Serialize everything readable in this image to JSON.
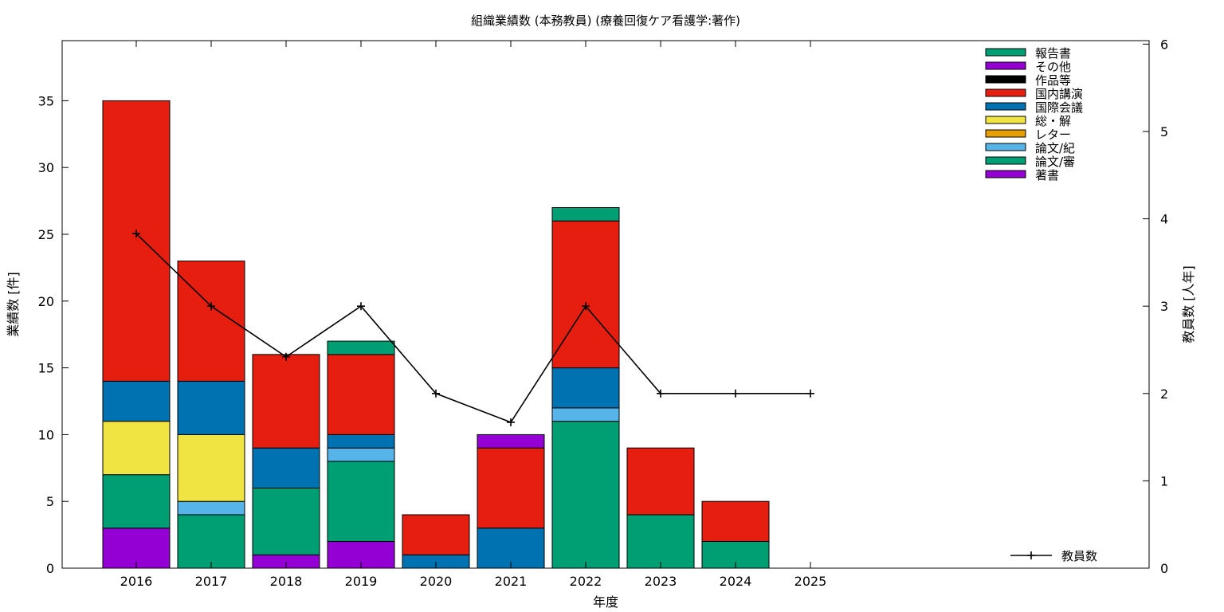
{
  "chart_data": {
    "type": "bar",
    "stacked": true,
    "title": "組織業績数 (本務教員) (療養回復ケア看護学:著作)",
    "xlabel": "年度",
    "ylabel": "業績数 [件]",
    "y2label": "教員数 [人年]",
    "categories": [
      "2016",
      "2017",
      "2018",
      "2019",
      "2020",
      "2021",
      "2022",
      "2023",
      "2024",
      "2025"
    ],
    "ylim": [
      0,
      39.5
    ],
    "yticks": [
      "0",
      "5",
      "10",
      "15",
      "20",
      "25",
      "30",
      "35"
    ],
    "y2lim": [
      0,
      6.04
    ],
    "y2ticks": [
      "0",
      "1",
      "2",
      "3",
      "4",
      "5",
      "6"
    ],
    "grid": false,
    "legend_position": "top-right",
    "series": [
      {
        "name": "著書",
        "color": "#9400d3",
        "values": [
          3,
          0,
          1,
          2,
          0,
          0,
          0,
          0,
          0,
          0
        ]
      },
      {
        "name": "論文/審",
        "color": "#009e73",
        "values": [
          4,
          4,
          5,
          6,
          0,
          0,
          11,
          4,
          2,
          0
        ]
      },
      {
        "name": "論文/紀",
        "color": "#56b4e9",
        "values": [
          0,
          1,
          0,
          1,
          0,
          0,
          1,
          0,
          0,
          0
        ]
      },
      {
        "name": "レター",
        "color": "#e69f00",
        "values": [
          0,
          0,
          0,
          0,
          0,
          0,
          0,
          0,
          0,
          0
        ]
      },
      {
        "name": "総・解",
        "color": "#f0e442",
        "values": [
          4,
          5,
          0,
          0,
          0,
          0,
          0,
          0,
          0,
          0
        ]
      },
      {
        "name": "国際会議",
        "color": "#0072b2",
        "values": [
          3,
          4,
          3,
          1,
          1,
          3,
          3,
          0,
          0,
          0
        ]
      },
      {
        "name": "国内講演",
        "color": "#e51e10",
        "values": [
          21,
          9,
          7,
          6,
          3,
          6,
          11,
          5,
          3,
          0
        ]
      },
      {
        "name": "作品等",
        "color": "#000000",
        "values": [
          0,
          0,
          0,
          0,
          0,
          0,
          0,
          0,
          0,
          0
        ]
      },
      {
        "name": "その他",
        "color": "#9400d3",
        "values": [
          0,
          0,
          0,
          0,
          0,
          1,
          0,
          0,
          0,
          0
        ]
      },
      {
        "name": "報告書",
        "color": "#009e73",
        "values": [
          0,
          0,
          0,
          1,
          0,
          0,
          1,
          0,
          0,
          0
        ]
      }
    ],
    "line_series": {
      "name": "教員数",
      "axis": "y2",
      "color": "#000000",
      "values": [
        3.83,
        3.0,
        2.42,
        3.0,
        2.0,
        1.67,
        3.0,
        2.0,
        2.0,
        2.0
      ]
    }
  }
}
